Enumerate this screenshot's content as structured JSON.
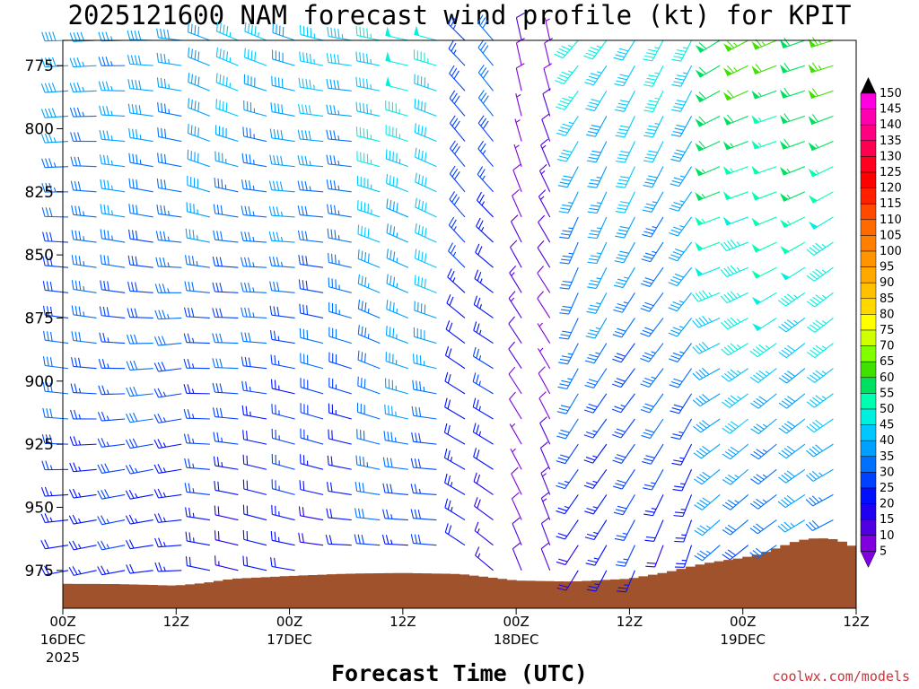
{
  "chart_data": {
    "type": "wind_profile",
    "title": "2025121600 NAM forecast wind profile (kt) for KPIT",
    "xlabel": "Forecast Time (UTC)",
    "credit": "coolwx.com/models",
    "ylim": [
      765,
      990
    ],
    "y_ticks": [
      {
        "label": "775",
        "value": 775
      },
      {
        "label": "800",
        "value": 800
      },
      {
        "label": "825",
        "value": 825
      },
      {
        "label": "850",
        "value": 850
      },
      {
        "label": "875",
        "value": 875
      },
      {
        "label": "900",
        "value": 900
      },
      {
        "label": "925",
        "value": 925
      },
      {
        "label": "950",
        "value": 950
      },
      {
        "label": "975",
        "value": 975
      }
    ],
    "x_range_hours": [
      0,
      84
    ],
    "x_ticks": [
      {
        "hour": 0,
        "time": "00Z",
        "date": "16DEC",
        "year": "2025"
      },
      {
        "hour": 12,
        "time": "12Z",
        "date": "",
        "year": ""
      },
      {
        "hour": 24,
        "time": "00Z",
        "date": "17DEC",
        "year": ""
      },
      {
        "hour": 36,
        "time": "12Z",
        "date": "",
        "year": ""
      },
      {
        "hour": 48,
        "time": "00Z",
        "date": "18DEC",
        "year": ""
      },
      {
        "hour": 60,
        "time": "12Z",
        "date": "",
        "year": ""
      },
      {
        "hour": 72,
        "time": "00Z",
        "date": "19DEC",
        "year": ""
      },
      {
        "hour": 84,
        "time": "12Z",
        "date": "",
        "year": ""
      }
    ],
    "colorbar_labels": [
      "150",
      "145",
      "140",
      "135",
      "130",
      "125",
      "120",
      "115",
      "110",
      "105",
      "100",
      "95",
      "90",
      "85",
      "80",
      "75",
      "70",
      "65",
      "60",
      "55",
      "50",
      "45",
      "40",
      "35",
      "30",
      "25",
      "20",
      "15",
      "10",
      "5"
    ],
    "colorbar_colors": [
      "#ff00e0",
      "#ff00b0",
      "#ff0080",
      "#ff0050",
      "#ff0020",
      "#ff0000",
      "#ff2000",
      "#ff4a00",
      "#ff6a00",
      "#ff8000",
      "#ff9400",
      "#ffa800",
      "#ffc000",
      "#ffd800",
      "#ffff00",
      "#d0ff00",
      "#80ff00",
      "#40e000",
      "#00e060",
      "#00ffb0",
      "#00f0e0",
      "#00c8ff",
      "#00a0ff",
      "#0070ff",
      "#0040ff",
      "#0010ff",
      "#2000f0",
      "#5000e0",
      "#8000e0"
    ],
    "colorbar_arrow_top": "#000000",
    "colorbar_arrow_bottom": "#8000e0",
    "terrain_color": "#a0522d",
    "surface_pressure": [
      {
        "hour": 0,
        "p": 980.5
      },
      {
        "hour": 6,
        "p": 980.6
      },
      {
        "hour": 12,
        "p": 981.2
      },
      {
        "hour": 15,
        "p": 980.2
      },
      {
        "hour": 18,
        "p": 978.5
      },
      {
        "hour": 24,
        "p": 977.4
      },
      {
        "hour": 30,
        "p": 976.5
      },
      {
        "hour": 36,
        "p": 976.2
      },
      {
        "hour": 42,
        "p": 976.6
      },
      {
        "hour": 46,
        "p": 978.3
      },
      {
        "hour": 48,
        "p": 979.2
      },
      {
        "hour": 54,
        "p": 979.6
      },
      {
        "hour": 60,
        "p": 978.5
      },
      {
        "hour": 64,
        "p": 975.9
      },
      {
        "hour": 68,
        "p": 972.4
      },
      {
        "hour": 72,
        "p": 970.2
      },
      {
        "hour": 74,
        "p": 968.5
      },
      {
        "hour": 76,
        "p": 965.8
      },
      {
        "hour": 78,
        "p": 963.3
      },
      {
        "hour": 80,
        "p": 962.3
      },
      {
        "hour": 82,
        "p": 963.0
      },
      {
        "hour": 84,
        "p": 966.2
      }
    ],
    "wind_columns_hours": [
      0,
      3,
      6,
      9,
      12,
      15,
      18,
      21,
      24,
      27,
      30,
      33,
      36,
      39,
      42,
      45,
      48,
      51,
      54,
      57,
      60,
      63,
      66,
      69,
      72,
      75,
      78,
      81,
      84
    ],
    "levels_hpa": [
      765,
      775,
      785,
      795,
      805,
      815,
      825,
      835,
      845,
      855,
      865,
      875,
      885,
      895,
      905,
      915,
      925,
      935,
      945,
      955,
      965,
      975
    ],
    "wind_regimes": [
      {
        "from_hour": 0,
        "to_hour": 12,
        "direction_deg": 275,
        "speed_top_kt": 38,
        "speed_low_kt": 22
      },
      {
        "from_hour": 12,
        "to_hour": 30,
        "direction_deg": 285,
        "speed_top_kt": 42,
        "speed_low_kt": 18
      },
      {
        "from_hour": 30,
        "to_hour": 40,
        "direction_deg": 290,
        "speed_top_kt": 48,
        "speed_low_kt": 25
      },
      {
        "from_hour": 40,
        "to_hour": 47,
        "direction_deg": 315,
        "speed_top_kt": 30,
        "speed_low_kt": 18
      },
      {
        "from_hour": 47,
        "to_hour": 51,
        "direction_deg": 340,
        "speed_top_kt": 10,
        "speed_low_kt": 10
      },
      {
        "from_hour": 51,
        "to_hour": 66,
        "direction_deg": 215,
        "speed_top_kt": 45,
        "speed_low_kt": 20
      },
      {
        "from_hour": 66,
        "to_hour": 84,
        "direction_deg": 245,
        "speed_top_kt": 62,
        "speed_low_kt": 28
      }
    ]
  }
}
